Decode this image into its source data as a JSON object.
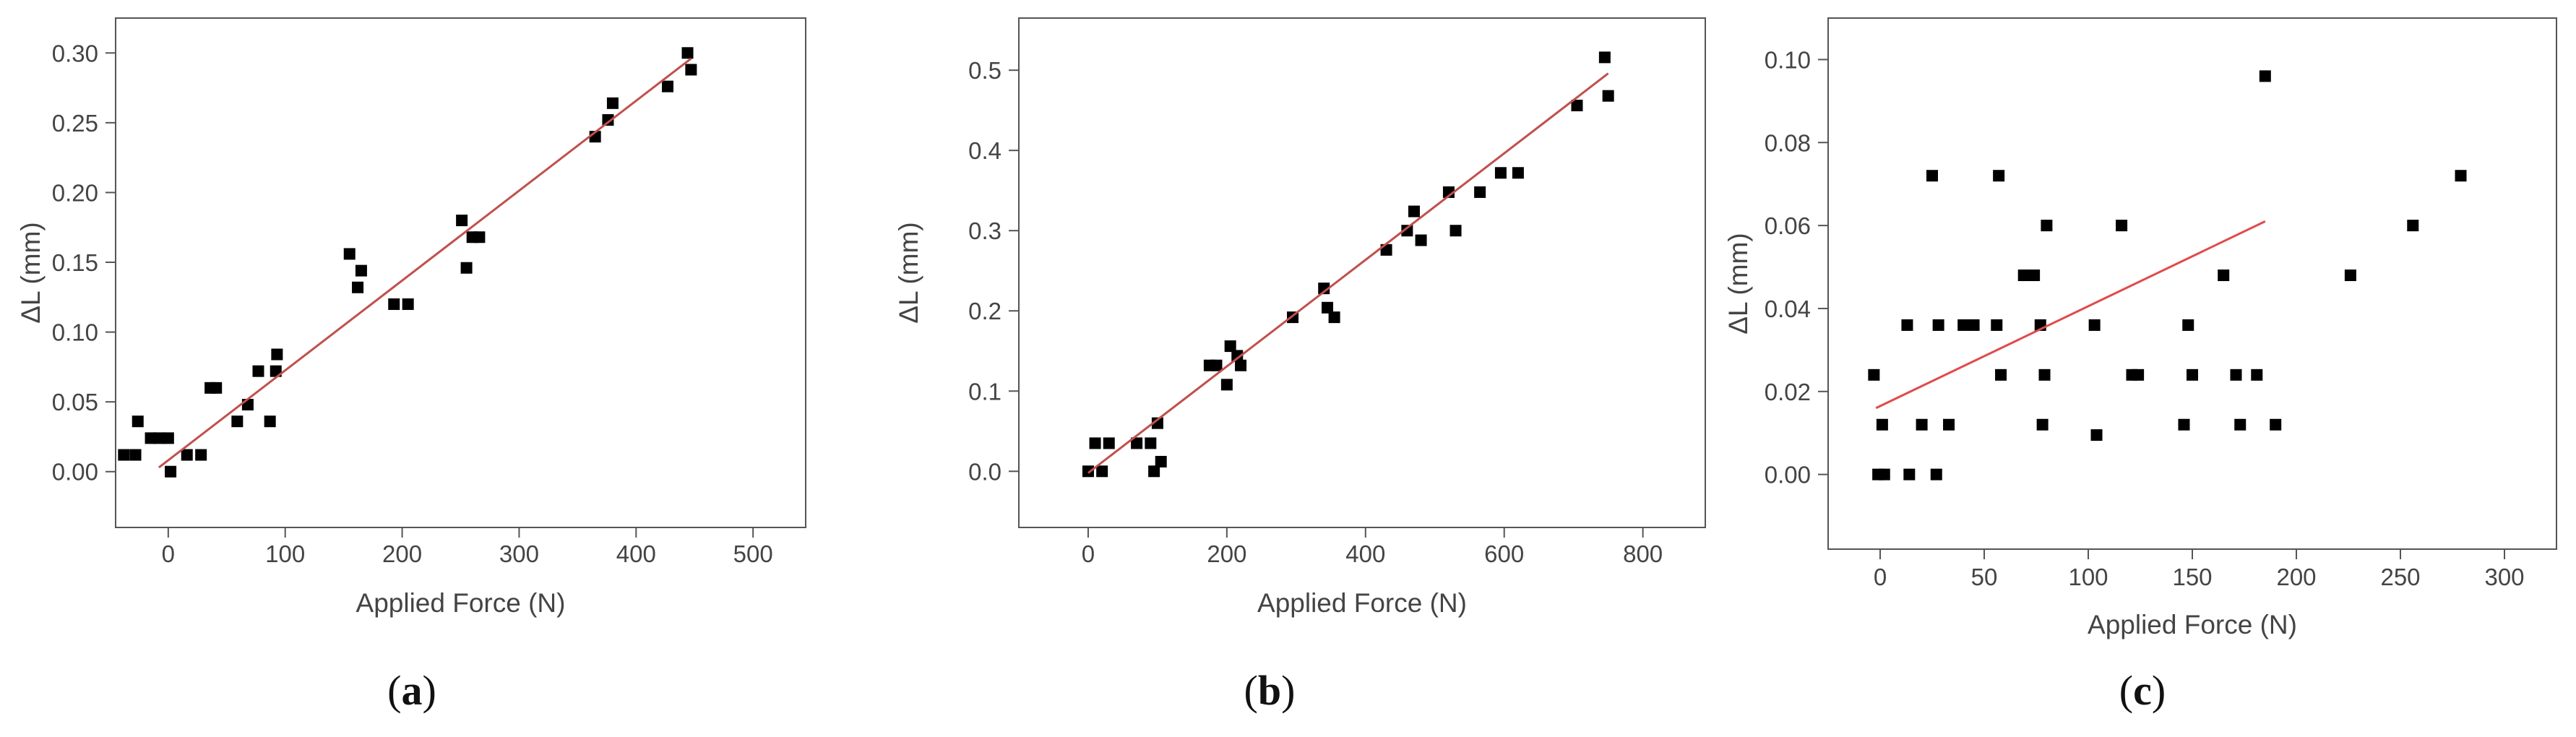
{
  "chart_data": [
    {
      "type": "scatter",
      "panel_label": "a",
      "xlabel": "Applied Force (N)",
      "ylabel": "ΔL (mm)",
      "xlim": [
        -45,
        545
      ],
      "ylim": [
        -0.04,
        0.325
      ],
      "xticks": [
        "0",
        "100",
        "200",
        "300",
        "400",
        "500"
      ],
      "yticks": [
        "0.00",
        "0.05",
        "0.10",
        "0.15",
        "0.20",
        "0.25",
        "0.30"
      ],
      "grid": false,
      "legend": "none",
      "marker_color": "#000000",
      "fit_color": "#c0504d",
      "fit_line": {
        "x": [
          -8,
          447
        ],
        "y": [
          0.003,
          0.296
        ]
      },
      "series": [
        {
          "x": [
            -38,
            -28,
            -26,
            -15,
            -8,
            0,
            2,
            16,
            28,
            36,
            41,
            59,
            68,
            77,
            87,
            92,
            93,
            155,
            162,
            165,
            193,
            205,
            251,
            255,
            260,
            266,
            365,
            376,
            380,
            427,
            444,
            447
          ],
          "y": [
            0.012,
            0.012,
            0.036,
            0.024,
            0.024,
            0.024,
            0.0,
            0.012,
            0.012,
            0.06,
            0.06,
            0.036,
            0.048,
            0.072,
            0.036,
            0.072,
            0.084,
            0.156,
            0.132,
            0.144,
            0.12,
            0.12,
            0.18,
            0.146,
            0.168,
            0.168,
            0.24,
            0.252,
            0.264,
            0.276,
            0.3,
            0.288
          ]
        }
      ]
    },
    {
      "type": "scatter",
      "panel_label": "b",
      "xlabel": "Applied Force (N)",
      "ylabel": "ΔL (mm)",
      "xlim": [
        -100,
        890
      ],
      "ylim": [
        -0.07,
        0.565
      ],
      "xticks": [
        "0",
        "200",
        "400",
        "600",
        "800"
      ],
      "yticks": [
        "0.0",
        "0.1",
        "0.2",
        "0.3",
        "0.4",
        "0.5"
      ],
      "grid": false,
      "legend": "none",
      "marker_color": "#000000",
      "fit_color": "#c0504d",
      "fit_line": {
        "x": [
          0,
          750
        ],
        "y": [
          -0.002,
          0.496
        ]
      },
      "series": [
        {
          "x": [
            0,
            10,
            20,
            30,
            70,
            90,
            95,
            100,
            105,
            175,
            185,
            200,
            205,
            215,
            220,
            295,
            340,
            345,
            355,
            430,
            460,
            470,
            480,
            520,
            530,
            565,
            595,
            620,
            705,
            745,
            750
          ],
          "y": [
            0.0,
            0.035,
            0.0,
            0.035,
            0.035,
            0.035,
            0.0,
            0.06,
            0.012,
            0.132,
            0.132,
            0.108,
            0.156,
            0.144,
            0.132,
            0.192,
            0.228,
            0.204,
            0.192,
            0.276,
            0.3,
            0.324,
            0.288,
            0.348,
            0.3,
            0.348,
            0.372,
            0.372,
            0.456,
            0.516,
            0.468
          ]
        }
      ]
    },
    {
      "type": "scatter",
      "panel_label": "c",
      "xlabel": "Applied Force (N)",
      "ylabel": "ΔL (mm)",
      "xlim": [
        -25,
        325
      ],
      "ylim": [
        -0.018,
        0.11
      ],
      "xticks": [
        "0",
        "50",
        "100",
        "150",
        "200",
        "250",
        "300"
      ],
      "yticks": [
        "0.00",
        "0.02",
        "0.04",
        "0.06",
        "0.08",
        "0.10"
      ],
      "grid": false,
      "legend": "none",
      "marker_color": "#000000",
      "fit_color": "#e04b4b",
      "fit_line": {
        "x": [
          -2,
          185
        ],
        "y": [
          0.016,
          0.061
        ]
      },
      "series": [
        {
          "x": [
            -3,
            -1,
            1,
            2,
            13,
            14,
            20,
            25,
            27,
            28,
            33,
            40,
            45,
            56,
            57,
            58,
            69,
            74,
            77,
            78,
            79,
            80,
            103,
            104,
            116,
            121,
            124,
            146,
            148,
            150,
            165,
            171,
            173,
            181,
            185,
            190,
            226,
            256,
            279
          ],
          "y": [
            0.024,
            0.0,
            0.012,
            0.0,
            0.036,
            0.0,
            0.012,
            0.072,
            0.0,
            0.036,
            0.012,
            0.036,
            0.036,
            0.036,
            0.072,
            0.024,
            0.048,
            0.048,
            0.036,
            0.012,
            0.024,
            0.06,
            0.036,
            0.0095,
            0.06,
            0.024,
            0.024,
            0.012,
            0.036,
            0.024,
            0.048,
            0.024,
            0.012,
            0.024,
            0.096,
            0.012,
            0.048,
            0.06,
            0.072
          ]
        }
      ]
    }
  ]
}
